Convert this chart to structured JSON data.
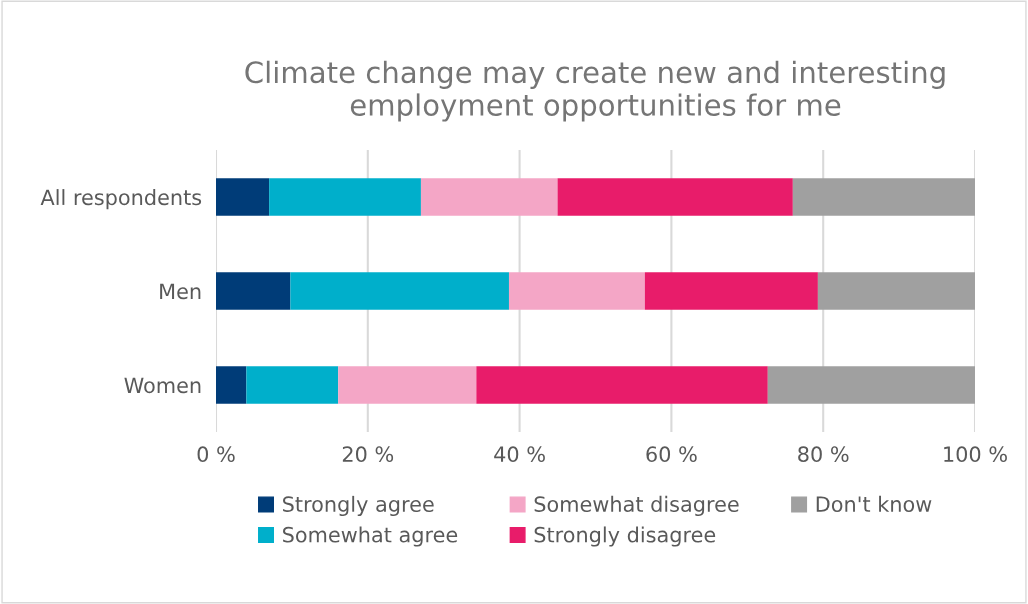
{
  "chart_data": {
    "type": "bar",
    "orientation": "horizontal",
    "stacked": true,
    "title": "Climate change may create new and interesting employment opportunities for me",
    "categories": [
      "All respondents",
      "Men",
      "Women"
    ],
    "series": [
      {
        "name": "Strongly agree",
        "color": "#003c78",
        "values": [
          7,
          9.8,
          4
        ]
      },
      {
        "name": "Somewhat agree",
        "color": "#00afcb",
        "values": [
          20,
          28.8,
          12.1
        ]
      },
      {
        "name": "Somewhat disagree",
        "color": "#f4a6c6",
        "values": [
          18,
          17.9,
          18.2
        ]
      },
      {
        "name": "Strongly disagree",
        "color": "#e81c6a",
        "values": [
          31,
          22.8,
          38.4
        ]
      },
      {
        "name": "Don't know",
        "color": "#a0a0a0",
        "values": [
          24,
          20.7,
          27.3
        ]
      }
    ],
    "xlim": [
      0,
      100
    ],
    "xticks": [
      {
        "value": 0,
        "label": "0 %"
      },
      {
        "value": 20,
        "label": "20 %"
      },
      {
        "value": 40,
        "label": "40 %"
      },
      {
        "value": 60,
        "label": "60 %"
      },
      {
        "value": 80,
        "label": "80 %"
      },
      {
        "value": 100,
        "label": "100 %"
      }
    ],
    "grid": "x",
    "legend": "bottom"
  }
}
